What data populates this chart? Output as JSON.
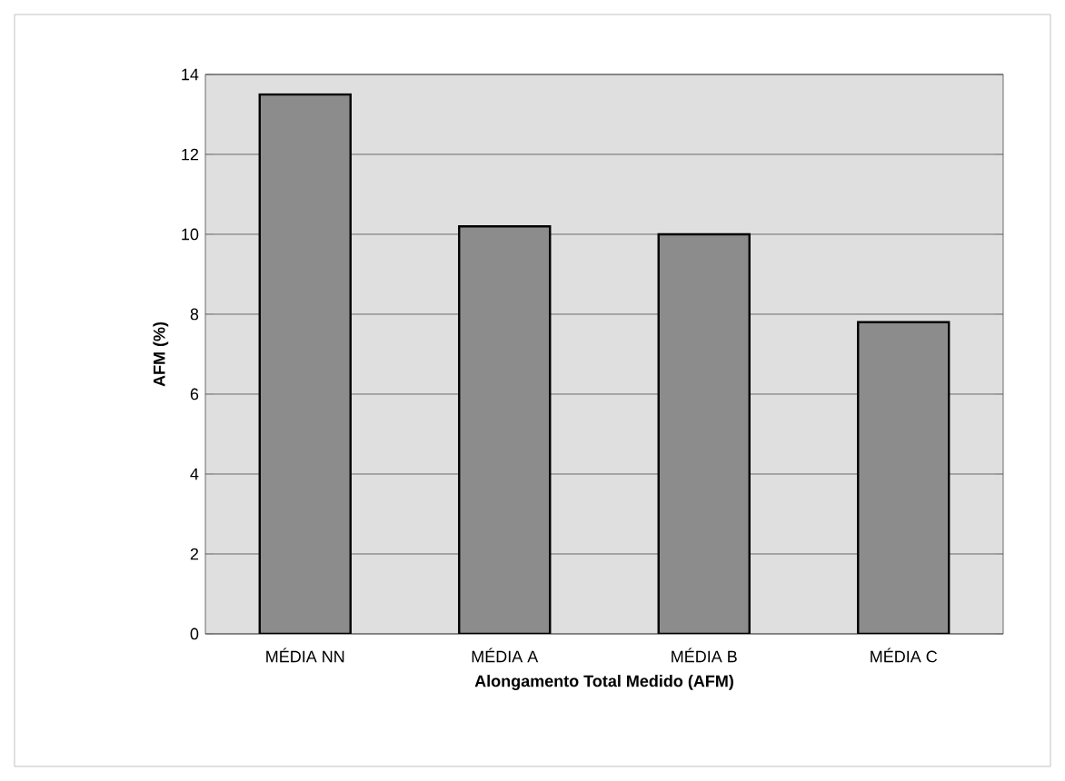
{
  "chart_data": {
    "type": "bar",
    "xlabel": "Alongamento Total Medido (AFM)",
    "ylabel": "AFM (%)",
    "categories": [
      "MÉDIA NN",
      "MÉDIA A",
      "MÉDIA B",
      "MÉDIA C"
    ],
    "values": [
      13.5,
      10.2,
      10.0,
      7.8
    ],
    "color": "#8c8c8c",
    "ylim": [
      0,
      14
    ],
    "yticks": [
      0,
      2,
      4,
      6,
      8,
      10,
      12,
      14
    ],
    "grid": "y"
  }
}
